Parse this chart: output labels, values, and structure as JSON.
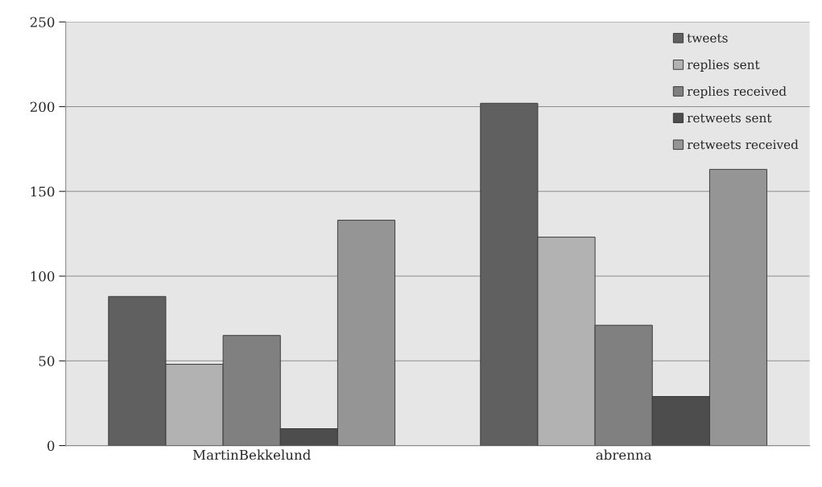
{
  "chart_data": {
    "type": "bar",
    "categories": [
      "MartinBekkelund",
      "abrenna"
    ],
    "series": [
      {
        "name": "tweets",
        "color": "#606060",
        "values": [
          88,
          202
        ]
      },
      {
        "name": "replies sent",
        "color": "#b2b2b2",
        "values": [
          48,
          123
        ]
      },
      {
        "name": "replies received",
        "color": "#808080",
        "values": [
          65,
          71
        ]
      },
      {
        "name": "retweets sent",
        "color": "#4d4d4d",
        "values": [
          10,
          29
        ]
      },
      {
        "name": "retweets received",
        "color": "#959595",
        "values": [
          133,
          163
        ]
      }
    ],
    "ylim": [
      0,
      250
    ],
    "yticks": [
      0,
      50,
      100,
      150,
      200,
      250
    ],
    "grid": "y",
    "legend": "top right"
  }
}
